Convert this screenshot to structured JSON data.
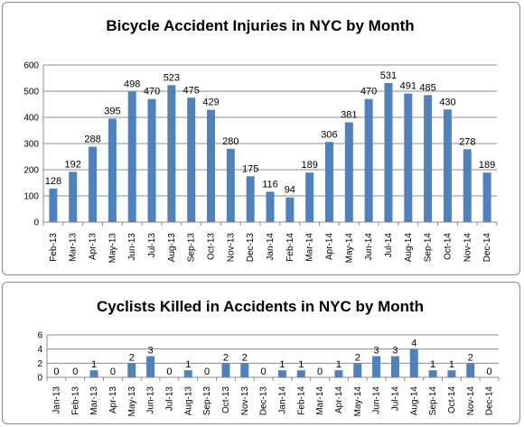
{
  "colors": {
    "bar": "#4f81bd",
    "grid": "#8c8c8c",
    "axis": "#8c8c8c",
    "border": "#8a8a8a"
  },
  "chart_data": [
    {
      "type": "bar",
      "title": "Bicycle Accident Injuries in NYC by Month",
      "xlabel": "",
      "ylabel": "",
      "ylim": [
        0,
        600
      ],
      "yticks": [
        0,
        100,
        200,
        300,
        400,
        500,
        600
      ],
      "grid": true,
      "legend": "none",
      "categories": [
        "Feb-13",
        "Mar-13",
        "Apr-13",
        "May-13",
        "Jun-13",
        "Jul-13",
        "Aug-13",
        "Sep-13",
        "Oct-13",
        "Nov-13",
        "Dec-13",
        "Jan-14",
        "Feb-14",
        "Mar-14",
        "Apr-14",
        "May-14",
        "Jun-14",
        "Jul-14",
        "Aug-14",
        "Sep-14",
        "Oct-14",
        "Nov-14",
        "Dec-14"
      ],
      "values": [
        128,
        192,
        288,
        395,
        498,
        470,
        523,
        475,
        429,
        280,
        175,
        116,
        94,
        189,
        306,
        381,
        470,
        531,
        491,
        485,
        430,
        278,
        189
      ]
    },
    {
      "type": "bar",
      "title": "Cyclists Killed in Accidents in NYC by Month",
      "xlabel": "",
      "ylabel": "",
      "ylim": [
        0,
        6
      ],
      "yticks": [
        0,
        2,
        4,
        6
      ],
      "grid": true,
      "legend": "none",
      "categories": [
        "Jan-13",
        "Feb-13",
        "Mar-13",
        "Apr-13",
        "May-13",
        "Jun-13",
        "Jul-13",
        "Aug-13",
        "Sep-13",
        "Oct-13",
        "Nov-13",
        "Dec-13",
        "Jan-14",
        "Feb-14",
        "Mar-14",
        "Apr-14",
        "May-14",
        "Jun-14",
        "Jul-14",
        "Aug-14",
        "Sep-14",
        "Oct-14",
        "Nov-14",
        "Dec-14"
      ],
      "values": [
        0,
        0,
        1,
        0,
        2,
        3,
        0,
        1,
        0,
        2,
        2,
        0,
        1,
        1,
        0,
        1,
        2,
        3,
        3,
        4,
        1,
        1,
        2,
        0
      ]
    }
  ]
}
